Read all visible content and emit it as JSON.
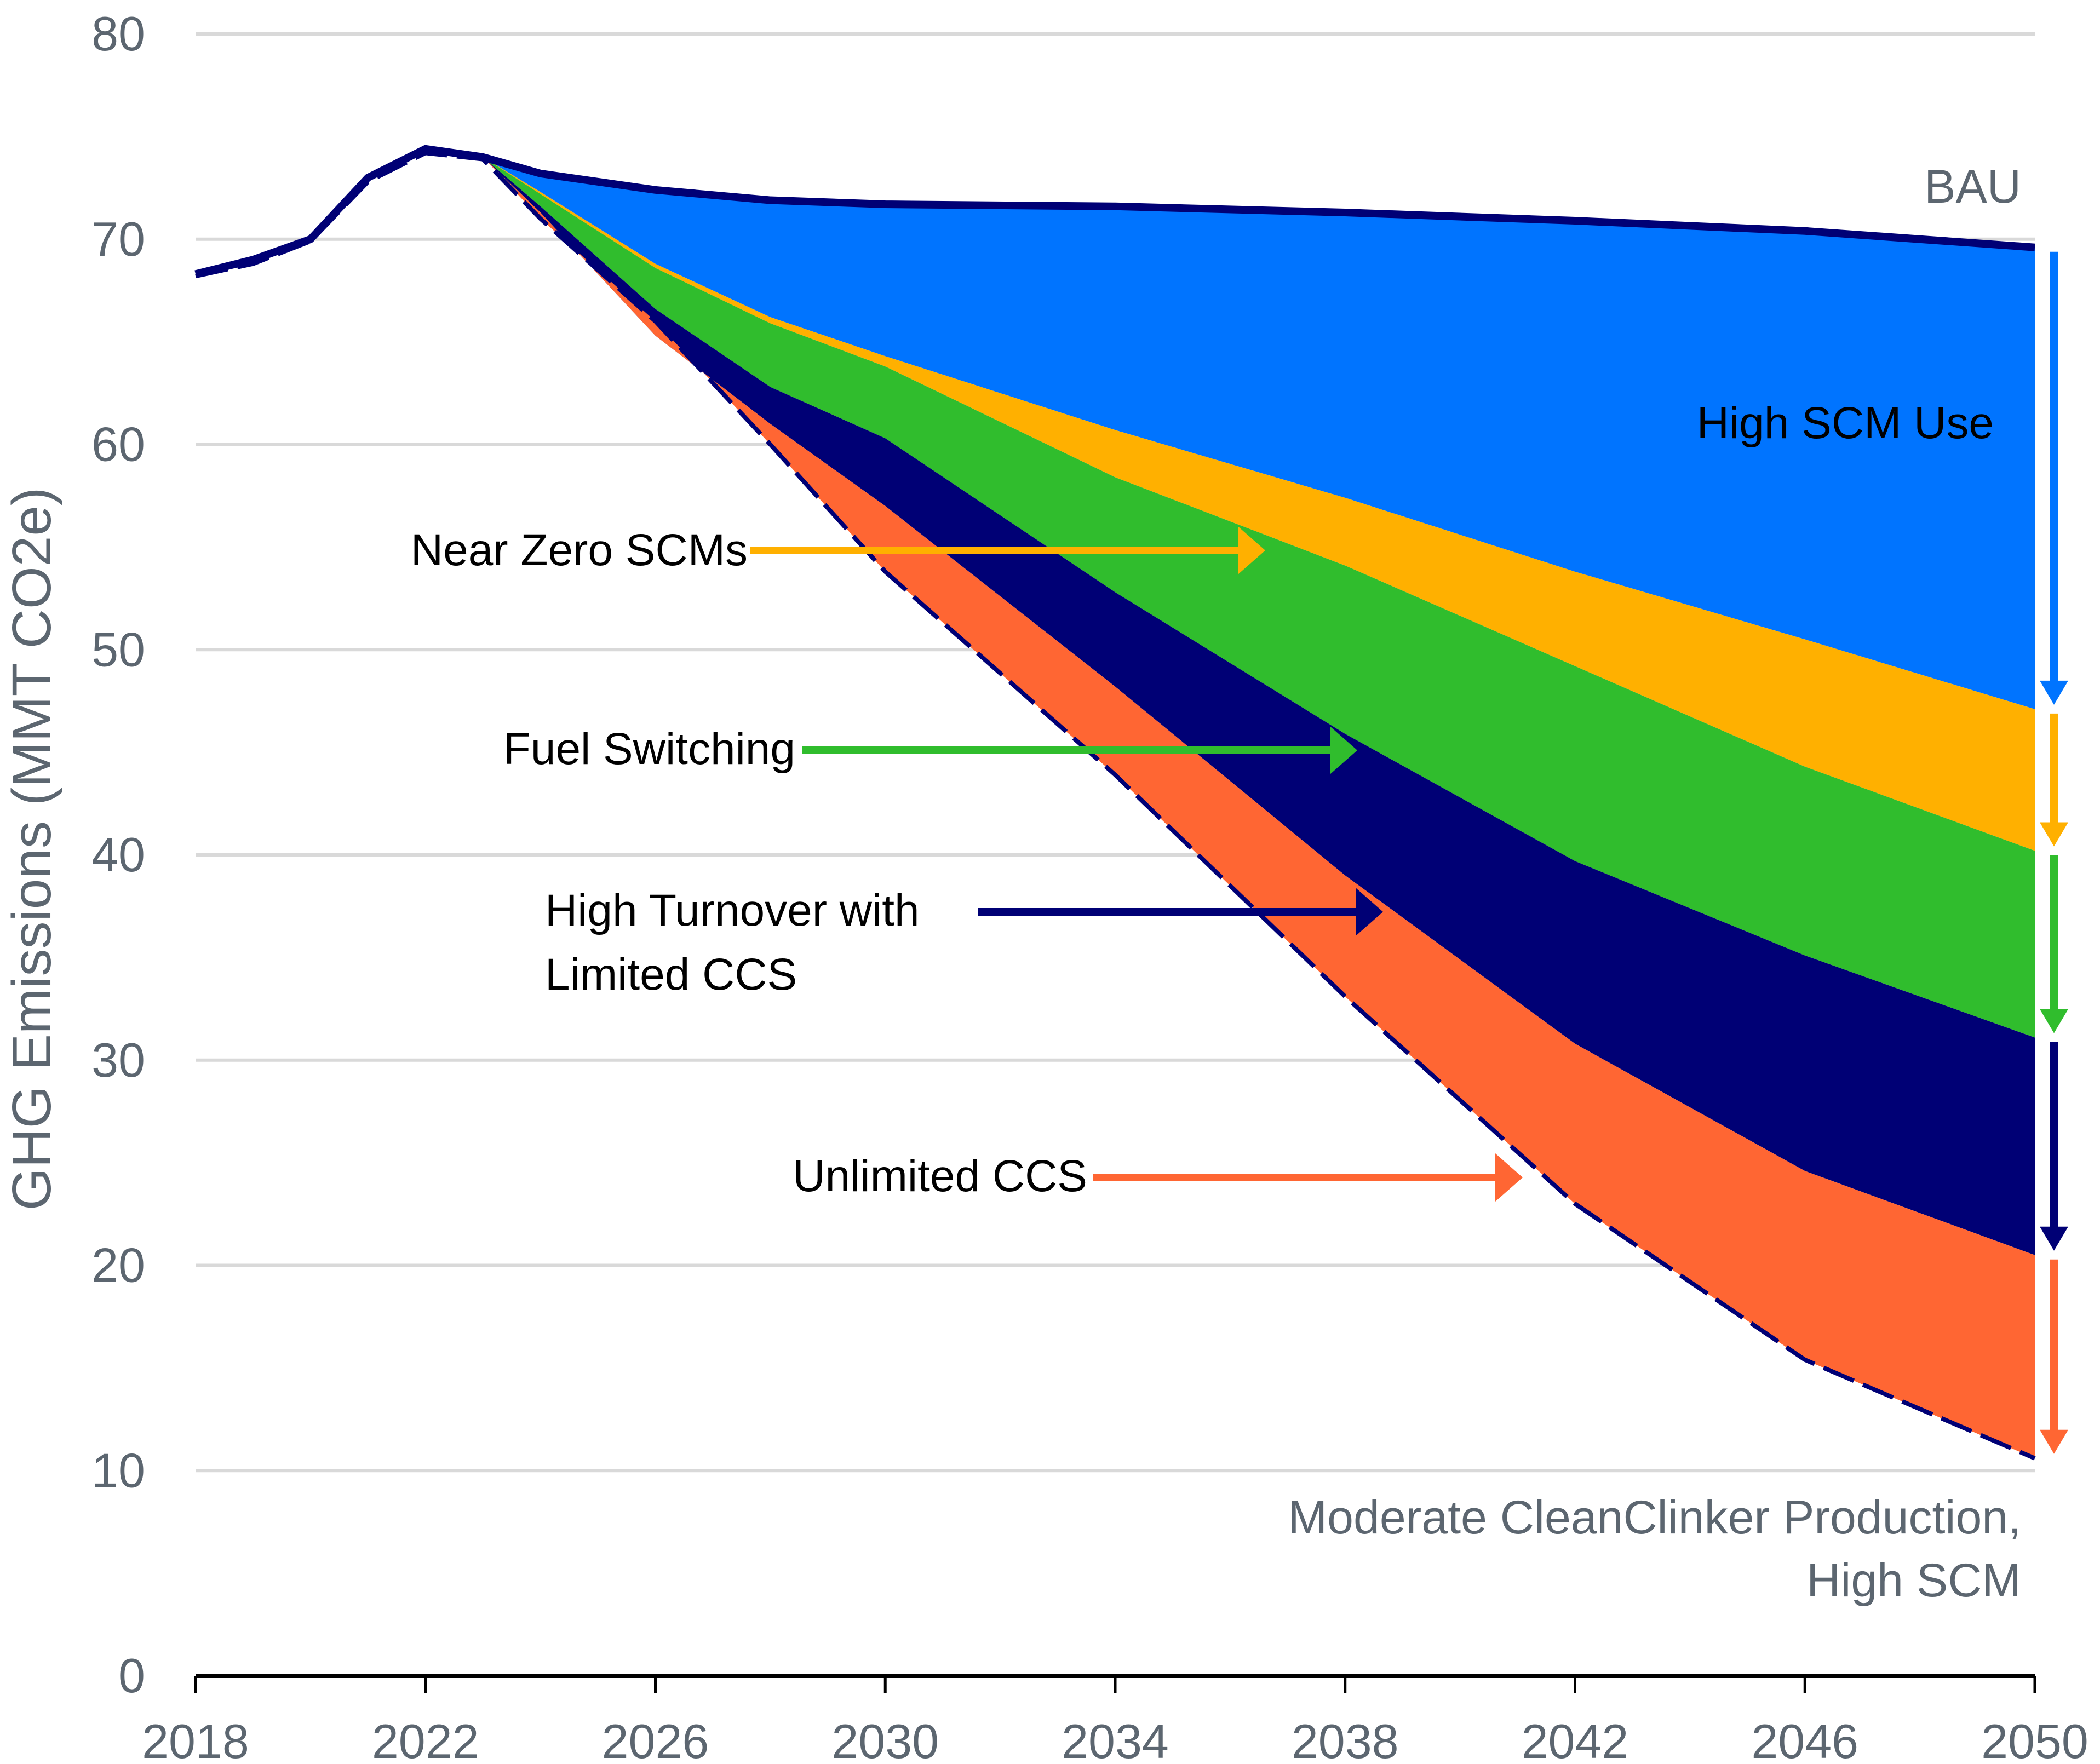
{
  "chart_data": {
    "type": "area",
    "title": "",
    "xlabel": "",
    "ylabel": "GHG Emissions (MMT CO2e)",
    "xlim": [
      2018,
      2050
    ],
    "ylim": [
      0,
      80
    ],
    "grid": true,
    "x_ticks": [
      "2018",
      "2022",
      "2026",
      "2030",
      "2034",
      "2038",
      "2042",
      "2046",
      "2050"
    ],
    "y_ticks": [
      "0",
      "10",
      "20",
      "30",
      "40",
      "50",
      "60",
      "70",
      "80"
    ],
    "x": [
      2018,
      2019,
      2020,
      2021,
      2022,
      2023,
      2024,
      2026,
      2028,
      2030,
      2034,
      2038,
      2042,
      2046,
      2050
    ],
    "lines": [
      {
        "name": "BAU",
        "color": "#000075",
        "style": "solid",
        "values": [
          68.3,
          69.0,
          70.0,
          73.0,
          74.4,
          74.0,
          73.2,
          72.4,
          71.9,
          71.7,
          71.6,
          71.3,
          70.9,
          70.4,
          69.6
        ]
      },
      {
        "name": "Moderate CleanClinker Production, High SCM",
        "color": "#000075",
        "style": "dashed",
        "values": [
          68.2,
          68.8,
          69.9,
          72.8,
          74.2,
          73.9,
          71.0,
          66.0,
          60.0,
          53.8,
          43.9,
          33.1,
          23.0,
          15.4,
          10.6
        ]
      }
    ],
    "bands": [
      {
        "name": "High SCM Use",
        "color": "#0074ff",
        "upper": [
          null,
          null,
          null,
          null,
          null,
          74.0,
          73.2,
          72.4,
          71.9,
          71.7,
          71.6,
          71.3,
          70.9,
          70.4,
          69.6
        ],
        "lower": [
          null,
          null,
          null,
          null,
          null,
          74.0,
          72.3,
          68.8,
          66.2,
          64.3,
          60.7,
          57.4,
          53.8,
          50.5,
          47.1
        ]
      },
      {
        "name": "Near Zero SCMs",
        "color": "#ffb000",
        "upper": [
          null,
          null,
          null,
          null,
          null,
          74.0,
          72.3,
          68.8,
          66.2,
          64.3,
          60.7,
          57.4,
          53.8,
          50.5,
          47.1
        ],
        "lower": [
          null,
          null,
          null,
          null,
          null,
          74.0,
          72.2,
          68.6,
          65.9,
          63.8,
          58.4,
          54.1,
          49.2,
          44.3,
          40.2
        ]
      },
      {
        "name": "Fuel Switching",
        "color": "#30bd2d",
        "upper": [
          null,
          null,
          null,
          null,
          null,
          74.0,
          72.2,
          68.6,
          65.9,
          63.8,
          58.4,
          54.1,
          49.2,
          44.3,
          40.2
        ],
        "lower": [
          null,
          null,
          null,
          null,
          null,
          74.0,
          71.6,
          66.6,
          62.8,
          60.3,
          52.8,
          45.9,
          39.7,
          35.1,
          31.1
        ]
      },
      {
        "name": "High Turnover with Limited CCS",
        "color": "#000075",
        "upper": [
          null,
          null,
          null,
          null,
          null,
          74.0,
          71.6,
          66.6,
          62.8,
          60.3,
          52.8,
          45.9,
          39.7,
          35.1,
          31.1
        ],
        "lower": [
          null,
          null,
          null,
          null,
          null,
          74.0,
          71.3,
          65.3,
          61.0,
          57.0,
          48.2,
          39.0,
          30.8,
          24.6,
          20.5
        ]
      },
      {
        "name": "Unlimited CCS",
        "color": "#ff6633",
        "upper": [
          null,
          null,
          null,
          null,
          null,
          74.0,
          71.3,
          65.3,
          61.0,
          57.0,
          48.2,
          39.0,
          30.8,
          24.6,
          20.5
        ],
        "lower": [
          null,
          null,
          null,
          null,
          null,
          74.0,
          71.0,
          66.0,
          60.0,
          53.8,
          43.9,
          33.1,
          23.0,
          15.4,
          10.6
        ]
      }
    ],
    "annotations": [
      {
        "text": "BAU",
        "color": "#5c6670"
      },
      {
        "text": "High SCM Use",
        "color": "#000000"
      },
      {
        "text": "Near Zero SCMs",
        "color": "#000000",
        "arrow_color": "#ffb000"
      },
      {
        "text": "Fuel Switching",
        "color": "#000000",
        "arrow_color": "#30bd2d"
      },
      {
        "text": "High Turnover with",
        "color": "#000000",
        "arrow_color": "#000075"
      },
      {
        "text": "Limited CCS",
        "color": "#000000"
      },
      {
        "text": "Unlimited CCS",
        "color": "#000000",
        "arrow_color": "#ff6633"
      },
      {
        "text": "Moderate CleanClinker Production,",
        "color": "#5c6670"
      },
      {
        "text": "High SCM",
        "color": "#5c6670"
      }
    ],
    "right_arrows": [
      {
        "name": "High SCM Use",
        "color": "#0074ff",
        "from": 69.6,
        "to": 47.1
      },
      {
        "name": "Near Zero SCMs",
        "color": "#ffb000",
        "from": 47.1,
        "to": 40.2
      },
      {
        "name": "Fuel Switching",
        "color": "#30bd2d",
        "from": 40.2,
        "to": 31.1
      },
      {
        "name": "High Turnover with Limited CCS",
        "color": "#000075",
        "from": 31.1,
        "to": 20.5
      },
      {
        "name": "Unlimited CCS",
        "color": "#ff6633",
        "from": 20.5,
        "to": 10.6
      }
    ],
    "legend": "none"
  }
}
